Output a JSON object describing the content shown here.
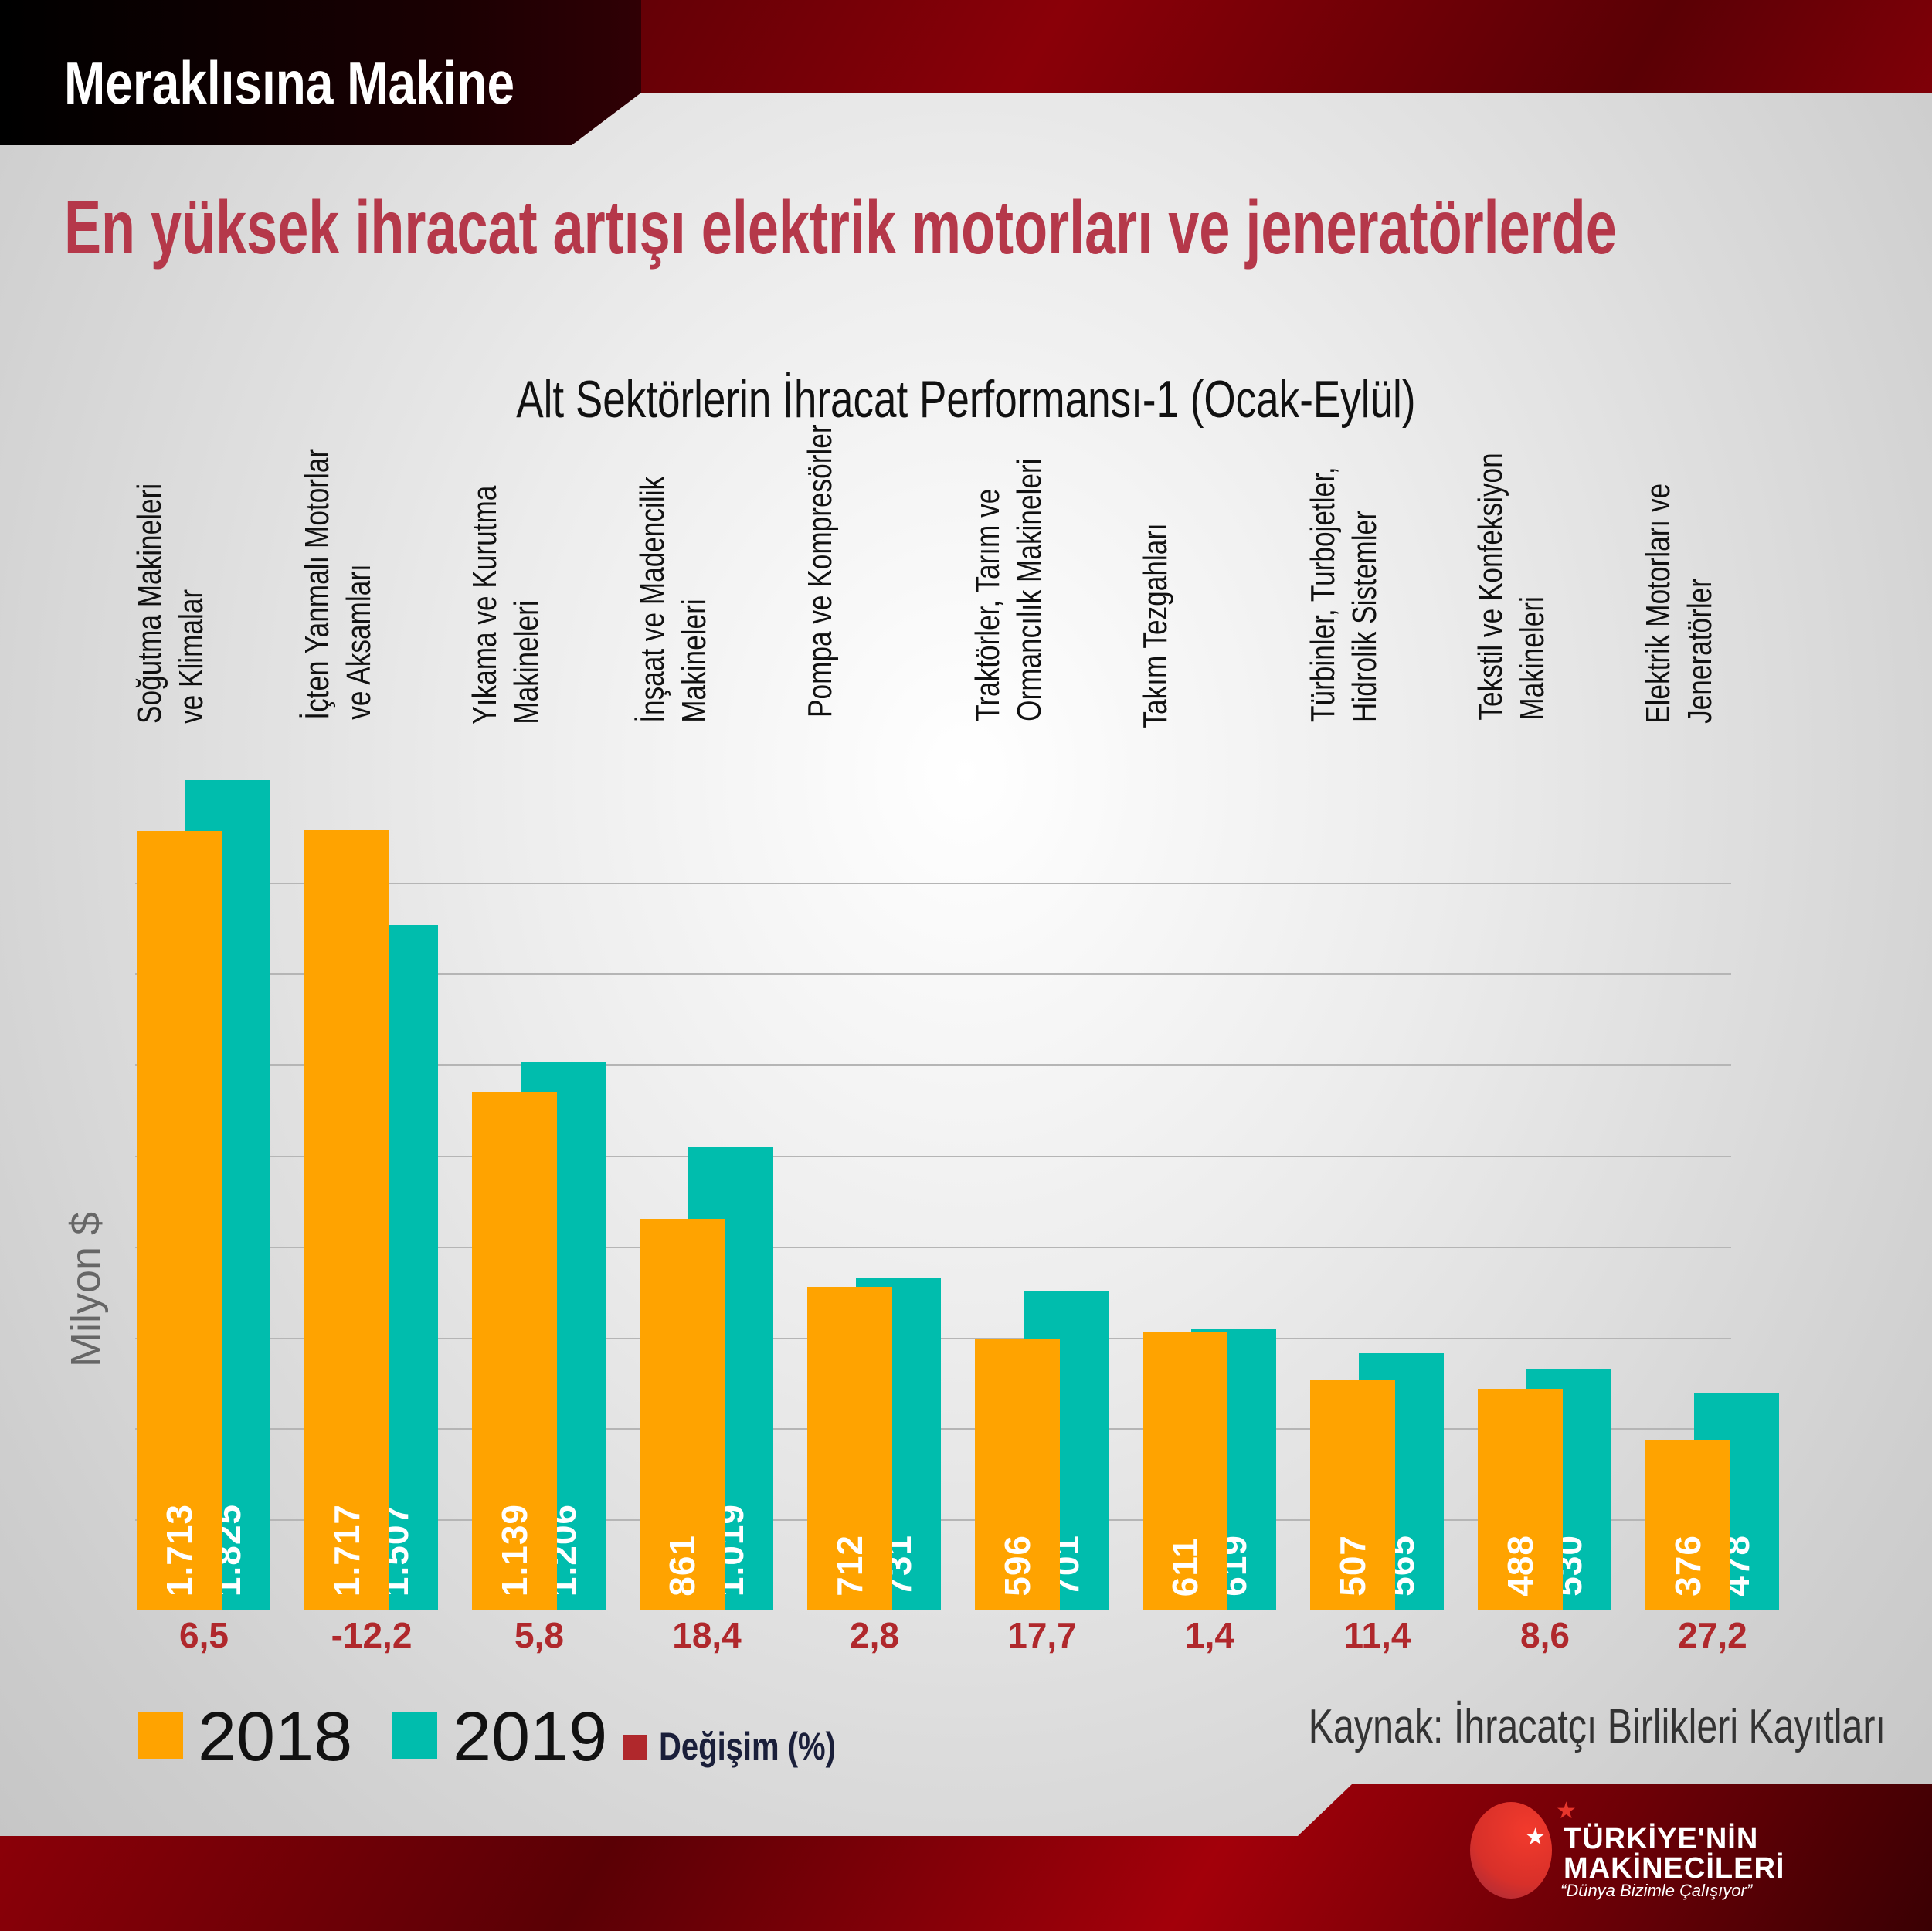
{
  "header": {
    "brand": "Meraklısına Makine",
    "title": "En yüksek ihracat artışı elektrik motorları ve jeneratörlerde"
  },
  "chart_data": {
    "type": "bar",
    "title": "Alt Sektörlerin İhracat Performansı-1 (Ocak-Eylül)",
    "ylabel": "Milyon $",
    "xlabel": "",
    "ylim": [
      0,
      1825
    ],
    "grid": true,
    "grid_step": 200,
    "categories": [
      [
        "Soğutma Makineleri",
        "ve Klimalar"
      ],
      [
        "İçten Yanmalı Motorlar",
        "ve Aksamları"
      ],
      [
        "Yıkama ve Kurutma",
        "Makineleri"
      ],
      [
        "İnşaat ve Madencilik",
        "Makineleri"
      ],
      [
        "Pompa ve Kompresörler"
      ],
      [
        "Traktörler, Tarım ve",
        "Ormancılık Makineleri"
      ],
      [
        "Takım Tezgahları"
      ],
      [
        "Türbinler, Turbojetler,",
        "Hidrolik Sistemler"
      ],
      [
        "Tekstil ve Konfeksiyon",
        "Makineleri"
      ],
      [
        "Elektrik Motorları ve",
        "Jeneratörler"
      ]
    ],
    "series": [
      {
        "name": "2018",
        "color": "#ffa300",
        "values": [
          1713,
          1717,
          1139,
          861,
          712,
          596,
          611,
          507,
          488,
          376
        ],
        "labels": [
          "1.713",
          "1.717",
          "1.139",
          "861",
          "712",
          "596",
          "611",
          "507",
          "488",
          "376"
        ]
      },
      {
        "name": "2019",
        "color": "#00bdad",
        "values": [
          1825,
          1507,
          1206,
          1019,
          731,
          701,
          619,
          565,
          530,
          478
        ],
        "labels": [
          "1.825",
          "1.507",
          "1.206",
          "1.019",
          "731",
          "701",
          "619",
          "565",
          "530",
          "478"
        ]
      }
    ],
    "change": {
      "name": "Değişim (%)",
      "color": "#b0282c",
      "labels": [
        "6,5",
        "-12,2",
        "5,8",
        "18,4",
        "2,8",
        "17,7",
        "1,4",
        "11,4",
        "8,6",
        "27,2"
      ]
    },
    "legend_position": "bottom-left"
  },
  "source": "Kaynak: İhracatçı Birlikleri Kayıtları",
  "logo": {
    "line1": "TÜRKİYE'NİN",
    "line2": "MAKİNECİLERİ",
    "tagline": "“Dünya Bizimle Çalışıyor”"
  }
}
